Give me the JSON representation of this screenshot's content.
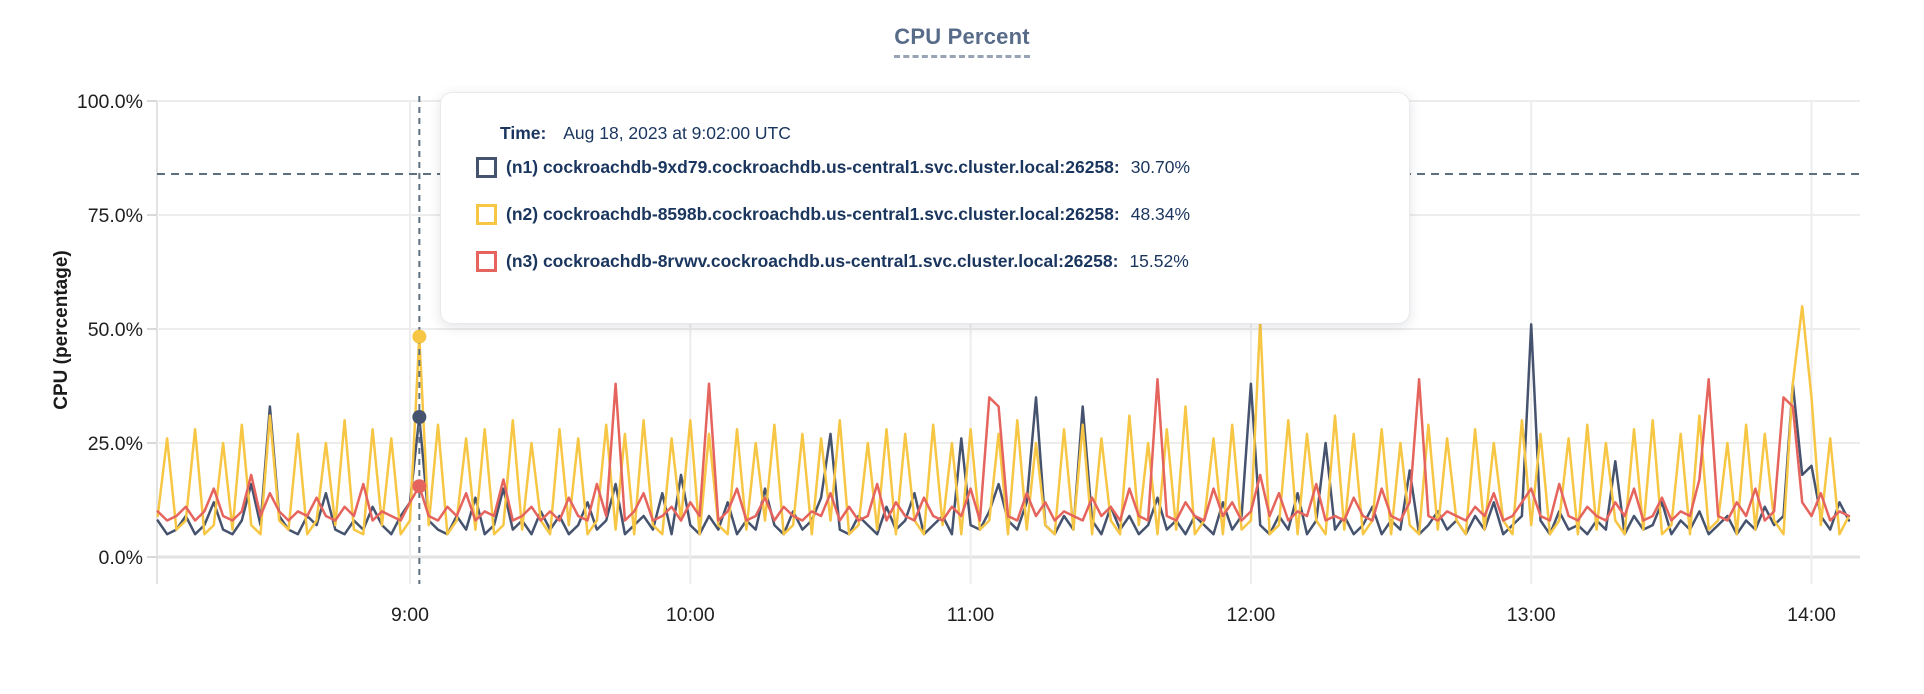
{
  "title": "CPU Percent",
  "tooltip": {
    "time_label": "Time:",
    "time_value": "Aug 18, 2023 at 9:02:00 UTC",
    "series": [
      {
        "label": "(n1) cockroachdb-9xd79.cockroachdb.us-central1.svc.cluster.local:26258:",
        "value": "30.70%",
        "color": "#46536F"
      },
      {
        "label": "(n2) cockroachdb-8598b.cockroachdb.us-central1.svc.cluster.local:26258:",
        "value": "48.34%",
        "color": "#F6C644"
      },
      {
        "label": "(n3) cockroachdb-8rvwv.cockroachdb.us-central1.svc.cluster.local:26258:",
        "value": "15.52%",
        "color": "#E5645D"
      }
    ]
  },
  "colors": {
    "accent_navy": "#46536F",
    "accent_yellow": "#F6C644",
    "accent_red": "#E5645D",
    "hover_dash": "#5C7080",
    "threshold_dash": "#5C7080",
    "gridline": "#ededed",
    "axis_line": "#e2e2e2",
    "title_text": "#586c89",
    "tooltip_text": "#1a355e"
  },
  "chart_data": {
    "type": "line",
    "title": "CPU Percent",
    "ylabel": "CPU (percentage)",
    "xlabel": "",
    "ylim": [
      0,
      100
    ],
    "grid": true,
    "legend_position": "hover-tooltip",
    "y_ticks": [
      "0.0%",
      "25.0%",
      "50.0%",
      "75.0%",
      "100.0%"
    ],
    "y_tick_values": [
      0,
      25,
      50,
      75,
      100
    ],
    "x_ticks": [
      "9:00",
      "10:00",
      "11:00",
      "12:00",
      "13:00",
      "14:00"
    ],
    "x_start_time": "8:06",
    "x_end_time": "14:08",
    "step_minutes": 2,
    "threshold_value": 84,
    "hover": {
      "time": "9:02",
      "index": 28,
      "values": [
        30.7,
        48.34,
        15.52
      ]
    },
    "series": [
      {
        "name": "(n1) cockroachdb-9xd79.cockroachdb.us-central1.svc.cluster.local:26258",
        "color": "#46536F",
        "values": [
          8,
          5,
          6,
          9,
          5,
          7,
          12,
          6,
          5,
          8,
          16,
          7,
          33,
          9,
          6,
          5,
          9,
          7,
          14,
          6,
          5,
          8,
          6,
          11,
          7,
          5,
          9,
          12,
          30.7,
          8,
          6,
          5,
          9,
          6,
          13,
          5,
          7,
          15,
          6,
          8,
          5,
          10,
          6,
          9,
          5,
          7,
          12,
          6,
          8,
          16,
          5,
          7,
          9,
          6,
          14,
          5,
          18,
          7,
          5,
          9,
          6,
          12,
          5,
          8,
          6,
          15,
          7,
          5,
          10,
          6,
          8,
          13,
          27,
          6,
          5,
          9,
          7,
          5,
          11,
          6,
          8,
          14,
          5,
          7,
          9,
          5,
          26,
          7,
          6,
          10,
          16,
          8,
          6,
          12,
          35,
          7,
          5,
          9,
          6,
          33,
          8,
          5,
          11,
          6,
          9,
          5,
          7,
          13,
          6,
          8,
          5,
          9,
          7,
          5,
          12,
          6,
          9,
          38,
          7,
          5,
          9,
          6,
          14,
          5,
          8,
          25,
          6,
          9,
          5,
          7,
          11,
          5,
          8,
          6,
          19,
          5,
          7,
          10,
          6,
          8,
          5,
          9,
          6,
          12,
          5,
          7,
          9,
          51,
          8,
          5,
          10,
          6,
          7,
          5,
          8,
          6,
          21,
          5,
          9,
          6,
          7,
          12,
          5,
          8,
          6,
          10,
          5,
          7,
          9,
          5,
          8,
          6,
          11,
          7,
          9,
          38,
          18,
          20,
          9,
          6,
          12,
          8
        ]
      },
      {
        "name": "(n2) cockroachdb-8598b.cockroachdb.us-central1.svc.cluster.local:26258",
        "color": "#F6C644",
        "values": [
          9,
          26,
          6,
          8,
          28,
          5,
          7,
          25,
          6,
          29,
          7,
          5,
          31,
          8,
          6,
          27,
          5,
          8,
          25,
          7,
          30,
          6,
          5,
          28,
          7,
          26,
          5,
          8,
          48.3,
          7,
          29,
          5,
          8,
          26,
          6,
          28,
          5,
          7,
          30,
          6,
          25,
          8,
          5,
          28,
          7,
          26,
          5,
          8,
          29,
          6,
          27,
          5,
          30,
          7,
          5,
          26,
          8,
          30,
          5,
          27,
          7,
          5,
          28,
          6,
          25,
          8,
          29,
          5,
          7,
          27,
          5,
          26,
          8,
          30,
          5,
          7,
          25,
          6,
          28,
          5,
          27,
          8,
          5,
          29,
          7,
          25,
          5,
          28,
          6,
          8,
          27,
          5,
          30,
          6,
          25,
          7,
          5,
          28,
          6,
          29,
          5,
          26,
          8,
          5,
          31,
          7,
          25,
          5,
          28,
          6,
          33,
          5,
          8,
          26,
          5,
          29,
          6,
          8,
          52,
          5,
          7,
          30,
          5,
          27,
          8,
          5,
          31,
          6,
          27,
          5,
          8,
          28,
          5,
          25,
          7,
          5,
          29,
          6,
          26,
          8,
          5,
          28,
          6,
          25,
          8,
          5,
          30,
          7,
          27,
          5,
          8,
          26,
          5,
          29,
          6,
          25,
          8,
          5,
          28,
          6,
          30,
          5,
          7,
          27,
          5,
          31,
          6,
          8,
          25,
          5,
          29,
          6,
          27,
          8,
          5,
          38,
          55,
          35,
          7,
          26,
          5,
          9
        ]
      },
      {
        "name": "(n3) cockroachdb-8rvwv.cockroachdb.us-central1.svc.cluster.local:26258",
        "color": "#E5645D",
        "values": [
          10,
          8,
          9,
          11,
          8,
          10,
          15,
          9,
          8,
          10,
          18,
          9,
          14,
          10,
          8,
          10,
          9,
          13,
          9,
          8,
          11,
          9,
          16,
          8,
          10,
          9,
          8,
          12,
          15.5,
          9,
          8,
          11,
          9,
          14,
          8,
          10,
          9,
          17,
          8,
          9,
          11,
          8,
          10,
          8,
          13,
          9,
          8,
          16,
          9,
          38,
          8,
          10,
          14,
          8,
          9,
          11,
          8,
          12,
          9,
          38,
          8,
          10,
          15,
          8,
          9,
          13,
          8,
          11,
          9,
          8,
          10,
          9,
          14,
          8,
          11,
          8,
          9,
          16,
          8,
          12,
          9,
          8,
          13,
          9,
          8,
          11,
          9,
          15,
          8,
          35,
          33,
          9,
          8,
          14,
          9,
          12,
          8,
          10,
          9,
          8,
          13,
          9,
          11,
          8,
          15,
          9,
          8,
          39,
          9,
          8,
          12,
          9,
          8,
          15,
          9,
          12,
          8,
          10,
          18,
          9,
          14,
          8,
          10,
          9,
          16,
          8,
          9,
          8,
          13,
          9,
          8,
          15,
          9,
          8,
          12,
          39,
          9,
          8,
          10,
          9,
          8,
          11,
          9,
          14,
          8,
          9,
          12,
          15,
          9,
          8,
          16,
          9,
          8,
          11,
          9,
          8,
          12,
          9,
          15,
          8,
          9,
          13,
          8,
          10,
          9,
          17,
          39,
          9,
          8,
          12,
          9,
          15,
          8,
          10,
          35,
          33,
          12,
          9,
          14,
          8,
          10,
          9
        ]
      }
    ]
  }
}
